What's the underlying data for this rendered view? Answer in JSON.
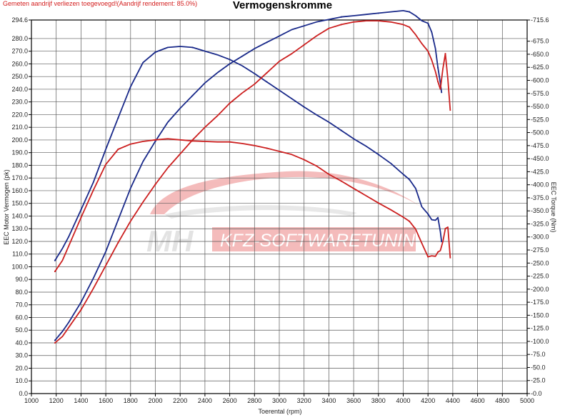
{
  "warning_text": "Gemeten aandrijf verliezen toegevoegd!(Aandrijf rendement: 85.0%)",
  "chart_data": {
    "type": "line",
    "title": "Vermogenskromme",
    "xlabel": "Toerental (rpm)",
    "ylabel_left": "EEC Motor Vermogen (pk)",
    "ylabel_right": "EEC Torque (Nm)",
    "xlim": [
      1000,
      5000
    ],
    "ylim_left": [
      0,
      294.6
    ],
    "ylim_right": [
      0,
      715.6
    ],
    "grid": true,
    "x_ticks": [
      "1000",
      "1200",
      "1400",
      "1600",
      "1800",
      "2000",
      "2200",
      "2400",
      "2600",
      "2800",
      "3000",
      "3200",
      "3400",
      "3600",
      "3800",
      "4000",
      "4200",
      "4400",
      "4600",
      "4800",
      "5000"
    ],
    "y_left_ticks": [
      "0.0",
      "10.0",
      "20.0",
      "30.0",
      "40.0",
      "50.0",
      "60.0",
      "70.0",
      "80.0",
      "90.0",
      "100.0",
      "110.0",
      "120.0",
      "130.0",
      "140.0",
      "150.0",
      "160.0",
      "170.0",
      "180.0",
      "190.0",
      "200.0",
      "210.0",
      "220.0",
      "230.0",
      "240.0",
      "250.0",
      "260.0",
      "270.0",
      "280.0",
      "294.6"
    ],
    "y_right_ticks": [
      "0.0",
      "25.0",
      "50.0",
      "75.0",
      "100.0",
      "125.0",
      "150.0",
      "175.0",
      "200.0",
      "225.0",
      "250.0",
      "275.0",
      "300.0",
      "325.0",
      "350.0",
      "375.0",
      "400.0",
      "425.0",
      "450.0",
      "475.0",
      "500.0",
      "525.0",
      "550.0",
      "575.0",
      "600.0",
      "625.0",
      "650.0",
      "675.0",
      "715.6"
    ],
    "series": [
      {
        "color": "#1a2a8a",
        "axis": "left",
        "x": [
          1190,
          1250,
          1300,
          1400,
          1500,
          1600,
          1700,
          1800,
          1900,
          2000,
          2100,
          2200,
          2300,
          2400,
          2500,
          2600,
          2700,
          2800,
          2900,
          3000,
          3100,
          3200,
          3300,
          3400,
          3500,
          3600,
          3700,
          3800,
          3900,
          4000,
          4050,
          4100,
          4150,
          4200,
          4230,
          4260,
          4280,
          4300,
          4310
        ],
        "y": [
          42,
          49,
          56,
          72,
          91,
          112,
          137,
          162,
          183,
          199,
          214,
          225,
          235,
          245,
          253,
          260,
          266,
          272,
          277,
          282,
          287,
          290,
          293,
          295,
          297,
          298,
          299,
          300,
          301,
          302,
          301,
          298,
          294,
          292,
          285,
          272,
          257,
          245,
          237
        ]
      },
      {
        "color": "#1a2a8a",
        "axis": "right",
        "x": [
          1190,
          1250,
          1300,
          1400,
          1500,
          1600,
          1700,
          1800,
          1900,
          2000,
          2100,
          2200,
          2300,
          2400,
          2500,
          2600,
          2700,
          2800,
          2900,
          3000,
          3100,
          3200,
          3300,
          3400,
          3500,
          3600,
          3700,
          3800,
          3900,
          4000,
          4050,
          4100,
          4150,
          4200,
          4230,
          4260,
          4280,
          4300,
          4310
        ],
        "y": [
          255,
          278,
          300,
          352,
          405,
          468,
          528,
          588,
          634,
          654,
          663,
          665,
          663,
          656,
          649,
          640,
          628,
          613,
          597,
          581,
          565,
          549,
          534,
          520,
          504,
          488,
          474,
          458,
          441,
          420,
          410,
          393,
          358,
          344,
          333,
          332,
          337,
          310,
          290
        ]
      },
      {
        "color": "#cc2020",
        "axis": "left",
        "x": [
          1190,
          1250,
          1300,
          1400,
          1500,
          1600,
          1700,
          1800,
          1900,
          2000,
          2100,
          2200,
          2300,
          2400,
          2500,
          2600,
          2700,
          2800,
          2900,
          3000,
          3100,
          3200,
          3300,
          3400,
          3500,
          3600,
          3700,
          3800,
          3900,
          4000,
          4050,
          4100,
          4150,
          4200,
          4230,
          4260,
          4280,
          4300,
          4320,
          4340,
          4360,
          4380
        ],
        "y": [
          40,
          45,
          52,
          66,
          83,
          101,
          119,
          136,
          151,
          165,
          178,
          189,
          200,
          210,
          219,
          229,
          237,
          244,
          253,
          262,
          268,
          275,
          282,
          288,
          291,
          293,
          294,
          294,
          293,
          291,
          289,
          283,
          276,
          270,
          263,
          254,
          246,
          240,
          256,
          268,
          248,
          223
        ]
      },
      {
        "color": "#cc2020",
        "axis": "right",
        "x": [
          1190,
          1250,
          1300,
          1400,
          1500,
          1600,
          1700,
          1800,
          1900,
          2000,
          2100,
          2200,
          2300,
          2400,
          2500,
          2600,
          2700,
          2800,
          2900,
          3000,
          3100,
          3200,
          3300,
          3400,
          3500,
          3600,
          3700,
          3800,
          3900,
          4000,
          4050,
          4100,
          4150,
          4200,
          4230,
          4260,
          4280,
          4300,
          4320,
          4340,
          4360,
          4380
        ],
        "y": [
          234,
          255,
          282,
          337,
          390,
          439,
          468,
          478,
          483,
          486,
          488,
          486,
          484,
          483,
          482,
          482,
          479,
          475,
          470,
          464,
          458,
          448,
          436,
          420,
          407,
          393,
          379,
          365,
          352,
          338,
          330,
          315,
          288,
          262,
          264,
          263,
          271,
          274,
          291,
          316,
          319,
          259
        ]
      }
    ]
  }
}
